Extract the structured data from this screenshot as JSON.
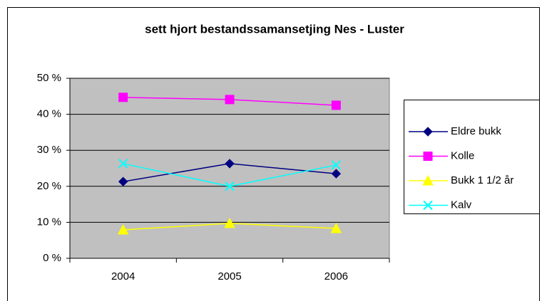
{
  "chart_data": {
    "type": "line",
    "title": "sett hjort bestandssamansetjing Nes - Luster",
    "categories": [
      "2004",
      "2005",
      "2006"
    ],
    "series": [
      {
        "name": "Eldre bukk",
        "color": "#000080",
        "marker": "diamond",
        "values": [
          21.3,
          26.3,
          23.5
        ]
      },
      {
        "name": "Kolle",
        "color": "#ff00ff",
        "marker": "square",
        "values": [
          44.7,
          44.1,
          42.5
        ]
      },
      {
        "name": "Bukk 1 1/2 år",
        "color": "#ffff00",
        "marker": "triangle",
        "values": [
          7.9,
          9.7,
          8.3
        ]
      },
      {
        "name": "Kalv",
        "color": "#00ffff",
        "marker": "x",
        "values": [
          26.3,
          20.0,
          25.9
        ]
      }
    ],
    "ylim": [
      0,
      50
    ],
    "yticks": [
      {
        "value": 0,
        "label": "0 %"
      },
      {
        "value": 10,
        "label": "10 %"
      },
      {
        "value": 20,
        "label": "20 %"
      },
      {
        "value": 30,
        "label": "30 %"
      },
      {
        "value": 40,
        "label": "40 %"
      },
      {
        "value": 50,
        "label": "50 %"
      }
    ],
    "grid": true,
    "legend": "right"
  }
}
